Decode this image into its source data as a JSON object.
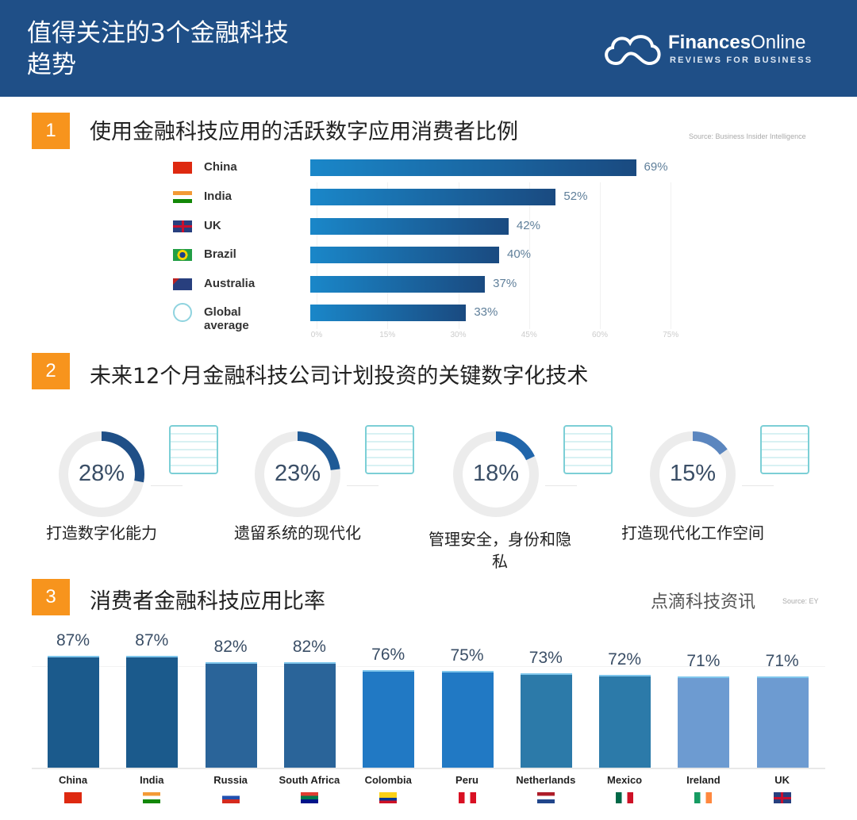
{
  "header": {
    "title": "值得关注的3个金融科技趋势",
    "logo_name_bold": "Finances",
    "logo_name_light": "Online",
    "logo_tagline": "REVIEWS FOR BUSINESS",
    "background": "#1f4f87"
  },
  "watermark": "点滴科技资讯",
  "sections": [
    {
      "number": "1",
      "title": "使用金融科技应用的活跃数字应用消费者比例",
      "source": "Source: Business Insider Intelligence"
    },
    {
      "number": "2",
      "title": "未来12个月金融科技公司计划投资的关键数字化技术"
    },
    {
      "number": "3",
      "title": "消费者金融科技应用比率",
      "source": "Source: EY"
    }
  ],
  "chart_data": [
    {
      "type": "bar",
      "orientation": "horizontal",
      "categories": [
        "China",
        "India",
        "UK",
        "Brazil",
        "Australia",
        "Global average"
      ],
      "values": [
        69,
        52,
        42,
        40,
        37,
        33
      ],
      "value_labels": [
        "69%",
        "52%",
        "42%",
        "40%",
        "37%",
        "33%"
      ],
      "icons": [
        "china-flag",
        "india-flag",
        "uk-flag",
        "brazil-flag",
        "australia-flag",
        "globe-icon"
      ],
      "xlim": [
        0,
        75
      ],
      "xticks": [
        "0%",
        "15%",
        "30%",
        "45%",
        "60%",
        "75%"
      ],
      "grid": true,
      "bar_color": "#1a6fb0"
    },
    {
      "type": "pie",
      "style": "donut",
      "items": [
        {
          "value": 28,
          "label": "28%",
          "caption": "打造数字化能力",
          "icon": "data-box-icon",
          "color": "#1f4f87"
        },
        {
          "value": 23,
          "label": "23%",
          "caption": "遗留系统的现代化",
          "icon": "scales-icon",
          "color": "#1f5a96"
        },
        {
          "value": 18,
          "label": "18%",
          "caption": "管理安全，身份和隐私",
          "icon": "lock-checklist-icon",
          "color": "#2166ab"
        },
        {
          "value": 15,
          "label": "15%",
          "caption": "打造现代化工作空间",
          "icon": "smart-city-icon",
          "color": "#5b86bf"
        }
      ]
    },
    {
      "type": "bar",
      "orientation": "vertical",
      "categories": [
        "China",
        "India",
        "Russia",
        "South Africa",
        "Colombia",
        "Peru",
        "Netherlands",
        "Mexico",
        "Ireland",
        "UK"
      ],
      "values": [
        87,
        87,
        82,
        82,
        76,
        75,
        73,
        72,
        71,
        71
      ],
      "value_labels": [
        "87%",
        "87%",
        "82%",
        "82%",
        "76%",
        "75%",
        "73%",
        "72%",
        "71%",
        "71%"
      ],
      "colors": [
        "#1b5a8c",
        "#1b5a8c",
        "#2a6499",
        "#2a6499",
        "#2179c4",
        "#2179c4",
        "#2c7aa9",
        "#2c7aa9",
        "#6d9bd1",
        "#6d9bd1"
      ],
      "ylim": [
        0,
        100
      ]
    }
  ]
}
